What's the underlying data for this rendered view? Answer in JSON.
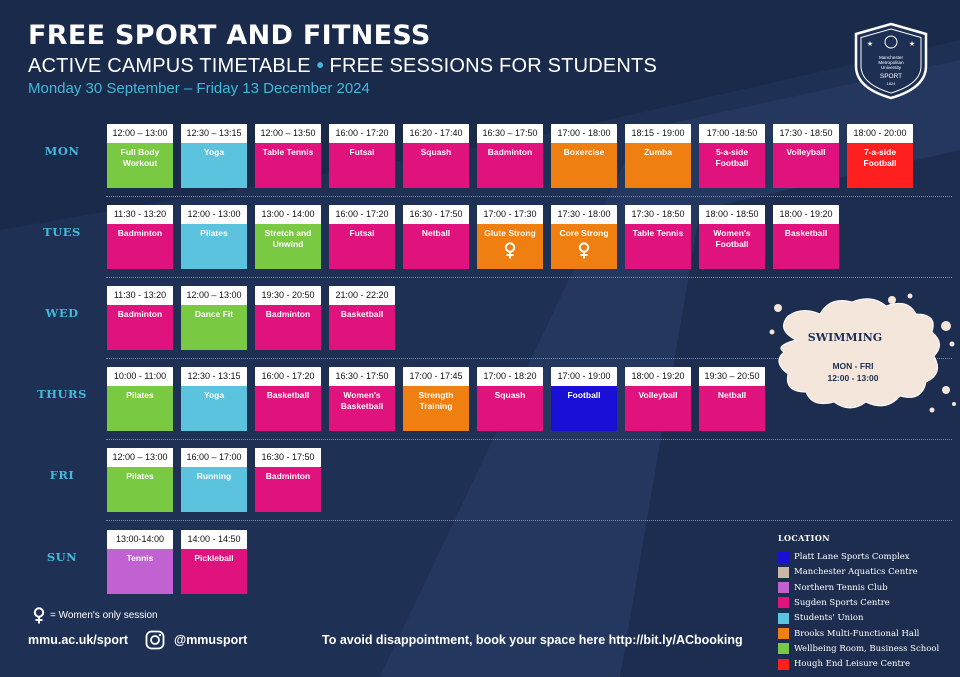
{
  "header": {
    "title": "FREE SPORT AND FITNESS",
    "subtitle_left": "ACTIVE CAMPUS TIMETABLE",
    "subtitle_sep": "•",
    "subtitle_right": "FREE SESSIONS FOR STUDENTS",
    "dates": "Monday 30 September – Friday 13 December 2024"
  },
  "logo": {
    "line1": "Manchester",
    "line2": "Metropolitan",
    "line3": "University",
    "line4": "SPORT",
    "line5": "1824"
  },
  "colors": {
    "platt": "#1a0fd6",
    "aquatics": "#cbb7a8",
    "tennis": "#c262d2",
    "sugden": "#e0127d",
    "union": "#5bc3dd",
    "brooks": "#f07f11",
    "wellbeing": "#7ac943",
    "hough": "#ff1f1f"
  },
  "days": [
    {
      "label": "MON",
      "sessions": [
        {
          "time": "12:00 – 13:00",
          "name": "Full Body Workout",
          "venue": "wellbeing"
        },
        {
          "time": "12:30 – 13:15",
          "name": "Yoga",
          "venue": "union"
        },
        {
          "time": "12:00 – 13:50",
          "name": "Table Tennis",
          "venue": "sugden"
        },
        {
          "time": "16:00 - 17:20",
          "name": "Futsal",
          "venue": "sugden"
        },
        {
          "time": "16:20 - 17:40",
          "name": "Squash",
          "venue": "sugden"
        },
        {
          "time": "16:30 – 17:50",
          "name": "Badminton",
          "venue": "sugden"
        },
        {
          "time": "17:00 - 18:00",
          "name": "Boxercise",
          "venue": "brooks"
        },
        {
          "time": "18:15 - 19:00",
          "name": "Zumba",
          "venue": "brooks"
        },
        {
          "time": "17:00 -18:50",
          "name": "5-a-side Football",
          "venue": "sugden"
        },
        {
          "time": "17:30 - 18:50",
          "name": "Volleyball",
          "venue": "sugden"
        },
        {
          "time": "18:00 - 20:00",
          "name": "7-a-side Football",
          "venue": "hough"
        }
      ]
    },
    {
      "label": "TUES",
      "sessions": [
        {
          "time": "11:30 - 13:20",
          "name": "Badminton",
          "venue": "sugden"
        },
        {
          "time": "12:00 - 13:00",
          "name": "Pilates",
          "venue": "union"
        },
        {
          "time": "13:00 - 14:00",
          "name": "Stretch and Unwind",
          "venue": "wellbeing"
        },
        {
          "time": "16:00 - 17:20",
          "name": "Futsal",
          "venue": "sugden"
        },
        {
          "time": "16:30 - 17:50",
          "name": "Netball",
          "venue": "sugden"
        },
        {
          "time": "17:00 - 17:30",
          "name": "Glute Strong",
          "venue": "brooks",
          "women_only": true
        },
        {
          "time": "17:30 - 18:00",
          "name": "Core Strong",
          "venue": "brooks",
          "women_only": true
        },
        {
          "time": "17:30 - 18:50",
          "name": "Table Tennis",
          "venue": "sugden"
        },
        {
          "time": "18:00 - 18:50",
          "name": "Women's Football",
          "venue": "sugden"
        },
        {
          "time": "18:00 - 19:20",
          "name": "Basketball",
          "venue": "sugden"
        }
      ]
    },
    {
      "label": "WED",
      "sessions": [
        {
          "time": "11:30 - 13:20",
          "name": "Badminton",
          "venue": "sugden"
        },
        {
          "time": "12:00 – 13:00",
          "name": "Dance Fit",
          "venue": "wellbeing"
        },
        {
          "time": "19:30 - 20:50",
          "name": "Badminton",
          "venue": "sugden"
        },
        {
          "time": "21:00 - 22:20",
          "name": "Basketball",
          "venue": "sugden"
        }
      ]
    },
    {
      "label": "THURS",
      "sessions": [
        {
          "time": "10:00 - 11:00",
          "name": "Pilates",
          "venue": "wellbeing"
        },
        {
          "time": "12:30 - 13:15",
          "name": "Yoga",
          "venue": "union"
        },
        {
          "time": "16:00 - 17:20",
          "name": "Basketball",
          "venue": "sugden"
        },
        {
          "time": "16:30 - 17:50",
          "name": "Women's Basketball",
          "venue": "sugden"
        },
        {
          "time": "17:00 - 17:45",
          "name": "Strength Training",
          "venue": "brooks"
        },
        {
          "time": "17:00 - 18:20",
          "name": "Squash",
          "venue": "sugden"
        },
        {
          "time": "17:00 - 19:00",
          "name": "Football",
          "venue": "platt"
        },
        {
          "time": "18:00 - 19:20",
          "name": "Volleyball",
          "venue": "sugden"
        },
        {
          "time": "19:30 – 20:50",
          "name": "Netball",
          "venue": "sugden"
        }
      ]
    },
    {
      "label": "FRI",
      "sessions": [
        {
          "time": "12:00 – 13:00",
          "name": "Pilates",
          "venue": "wellbeing"
        },
        {
          "time": "16:00 – 17:00",
          "name": "Running",
          "venue": "union"
        },
        {
          "time": "16:30 - 17:50",
          "name": "Badminton",
          "venue": "sugden"
        }
      ]
    },
    {
      "label": "SUN",
      "sessions": [
        {
          "time": "13:00-14:00",
          "name": "Tennis",
          "venue": "tennis"
        },
        {
          "time": "14:00 - 14:50",
          "name": "Pickleball",
          "venue": "sugden"
        }
      ]
    }
  ],
  "swimming": {
    "title": "SWIMMING",
    "days": "MON - FRI",
    "time": "12:00 - 13:00"
  },
  "legend": {
    "title": "LOCATION",
    "items": [
      {
        "label": "Platt Lane Sports Complex",
        "venue": "platt"
      },
      {
        "label": "Manchester Aquatics Centre",
        "venue": "aquatics"
      },
      {
        "label": "Northern Tennis Club",
        "venue": "tennis"
      },
      {
        "label": "Sugden Sports Centre",
        "venue": "sugden"
      },
      {
        "label": "Students' Union",
        "venue": "union"
      },
      {
        "label": "Brooks Multi-Functional Hall",
        "venue": "brooks"
      },
      {
        "label": "Wellbeing Room, Business School",
        "venue": "wellbeing"
      },
      {
        "label": "Hough End Leisure Centre",
        "venue": "hough"
      }
    ]
  },
  "key": {
    "icon": "female-symbol-icon",
    "text": "= Women's only session"
  },
  "footer": {
    "website": "mmu.ac.uk/sport",
    "handle": "@mmusport",
    "booking": "To avoid disappointment, book your space here http://bit.ly/ACbooking"
  }
}
